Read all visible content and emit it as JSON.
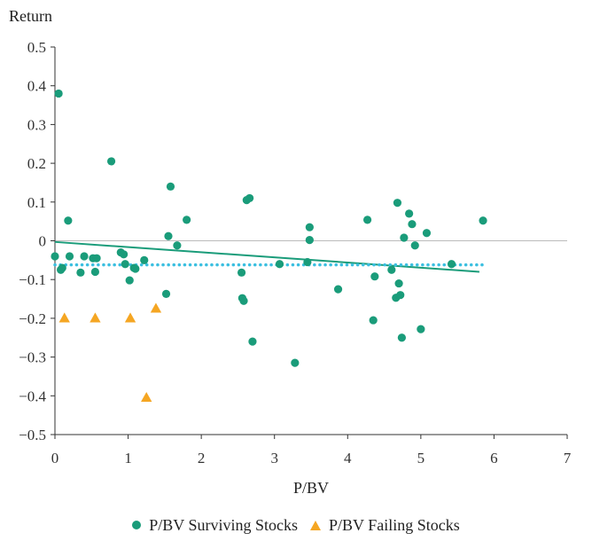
{
  "chart_data": {
    "type": "scatter",
    "title": "",
    "xlabel": "P/BV",
    "ylabel": "Return",
    "xlim": [
      0,
      7
    ],
    "ylim": [
      -0.5,
      0.5
    ],
    "x_ticks": [
      "0",
      "1",
      "2",
      "3",
      "4",
      "5",
      "6",
      "7"
    ],
    "y_ticks": [
      "0.5",
      "0.4",
      "0.3",
      "0.2",
      "0.1",
      "0",
      "−0.1",
      "−0.2",
      "−0.3",
      "−0.4",
      "−0.5"
    ],
    "grid": false,
    "legend_position": "bottom",
    "colors": {
      "surviving": "#1a9c7a",
      "failing": "#f5a623",
      "trend": "#1a9c7a",
      "mean": "#3bbfe0",
      "zero": "#bbbbbb"
    },
    "series": [
      {
        "name": "P/BV Surviving Stocks",
        "marker": "circle",
        "points": [
          [
            0.05,
            0.38
          ],
          [
            0.0,
            -0.04
          ],
          [
            0.1,
            -0.07
          ],
          [
            0.08,
            -0.075
          ],
          [
            0.18,
            0.052
          ],
          [
            0.2,
            -0.04
          ],
          [
            0.35,
            -0.082
          ],
          [
            0.4,
            -0.04
          ],
          [
            0.52,
            -0.045
          ],
          [
            0.57,
            -0.045
          ],
          [
            0.55,
            -0.08
          ],
          [
            0.77,
            0.205
          ],
          [
            0.9,
            -0.03
          ],
          [
            0.94,
            -0.035
          ],
          [
            0.96,
            -0.06
          ],
          [
            1.02,
            -0.102
          ],
          [
            1.08,
            -0.07
          ],
          [
            1.1,
            -0.072
          ],
          [
            1.22,
            -0.05
          ],
          [
            1.52,
            -0.137
          ],
          [
            1.55,
            0.012
          ],
          [
            1.58,
            0.14
          ],
          [
            1.67,
            -0.012
          ],
          [
            1.8,
            0.054
          ],
          [
            2.55,
            -0.082
          ],
          [
            2.56,
            -0.148
          ],
          [
            2.58,
            -0.155
          ],
          [
            2.62,
            0.105
          ],
          [
            2.66,
            0.11
          ],
          [
            2.7,
            -0.26
          ],
          [
            3.07,
            -0.06
          ],
          [
            3.28,
            -0.315
          ],
          [
            3.45,
            -0.055
          ],
          [
            3.48,
            0.002
          ],
          [
            3.48,
            0.035
          ],
          [
            3.87,
            -0.125
          ],
          [
            4.27,
            0.054
          ],
          [
            4.35,
            -0.205
          ],
          [
            4.37,
            -0.092
          ],
          [
            4.6,
            -0.075
          ],
          [
            4.66,
            -0.147
          ],
          [
            4.68,
            0.098
          ],
          [
            4.7,
            -0.11
          ],
          [
            4.72,
            -0.14
          ],
          [
            4.74,
            -0.25
          ],
          [
            4.77,
            0.008
          ],
          [
            4.84,
            0.07
          ],
          [
            4.88,
            0.043
          ],
          [
            4.92,
            -0.012
          ],
          [
            5.0,
            -0.228
          ],
          [
            5.08,
            0.02
          ],
          [
            5.42,
            -0.06
          ],
          [
            5.85,
            0.052
          ]
        ]
      },
      {
        "name": "P/BV Failing Stocks",
        "marker": "triangle",
        "points": [
          [
            0.13,
            -0.2
          ],
          [
            0.55,
            -0.2
          ],
          [
            1.03,
            -0.2
          ],
          [
            1.38,
            -0.175
          ],
          [
            1.25,
            -0.405
          ]
        ]
      }
    ],
    "lines": [
      {
        "kind": "trendline",
        "style": "solid",
        "x": [
          0,
          5.8
        ],
        "y": [
          -0.003,
          -0.08
        ]
      },
      {
        "kind": "mean",
        "style": "dotted",
        "x": [
          0,
          5.85
        ],
        "y": [
          -0.062,
          -0.062
        ]
      }
    ]
  }
}
